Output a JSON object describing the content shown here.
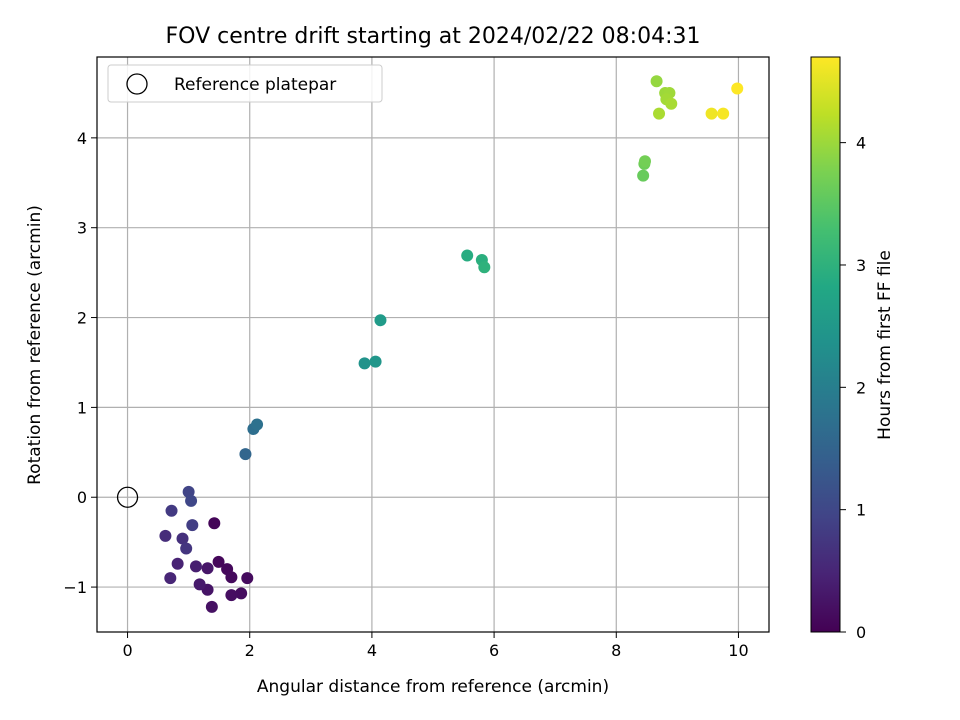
{
  "chart_data": {
    "type": "scatter",
    "title": "FOV centre drift starting at 2024/02/22 08:04:31",
    "xlabel": "Angular distance from reference (arcmin)",
    "ylabel": "Rotation from reference (arcmin)",
    "xlim": [
      -0.5,
      10.5
    ],
    "ylim": [
      -1.5,
      4.9
    ],
    "xticks": [
      0,
      2,
      4,
      6,
      8,
      10
    ],
    "yticks": [
      -1,
      0,
      1,
      2,
      3,
      4
    ],
    "grid": true,
    "legend": {
      "placement": "top-left",
      "entries": [
        "Reference platepar"
      ]
    },
    "reference_point": {
      "x": 0,
      "y": 0
    },
    "colorbar": {
      "label": "Hours from first FF file",
      "range": [
        0,
        4.7
      ],
      "ticks": [
        0,
        1,
        2,
        3,
        4
      ],
      "colormap": "viridis"
    },
    "points": [
      {
        "x": 1.42,
        "y": -0.29,
        "h": 0.05
      },
      {
        "x": 1.49,
        "y": -0.72,
        "h": 0.08
      },
      {
        "x": 1.63,
        "y": -0.8,
        "h": 0.1
      },
      {
        "x": 1.7,
        "y": -0.89,
        "h": 0.12
      },
      {
        "x": 1.96,
        "y": -0.9,
        "h": 0.14
      },
      {
        "x": 1.86,
        "y": -1.07,
        "h": 0.16
      },
      {
        "x": 1.7,
        "y": -1.09,
        "h": 0.18
      },
      {
        "x": 1.38,
        "y": -1.22,
        "h": 0.22
      },
      {
        "x": 1.31,
        "y": -1.03,
        "h": 0.26
      },
      {
        "x": 1.31,
        "y": -0.79,
        "h": 0.3
      },
      {
        "x": 1.18,
        "y": -0.97,
        "h": 0.34
      },
      {
        "x": 1.12,
        "y": -0.77,
        "h": 0.4
      },
      {
        "x": 0.82,
        "y": -0.74,
        "h": 0.45
      },
      {
        "x": 0.7,
        "y": -0.9,
        "h": 0.5
      },
      {
        "x": 0.62,
        "y": -0.43,
        "h": 0.6
      },
      {
        "x": 0.9,
        "y": -0.46,
        "h": 0.65
      },
      {
        "x": 0.96,
        "y": -0.57,
        "h": 0.72
      },
      {
        "x": 0.72,
        "y": -0.15,
        "h": 0.8
      },
      {
        "x": 1.06,
        "y": -0.31,
        "h": 0.85
      },
      {
        "x": 1.0,
        "y": 0.06,
        "h": 0.95
      },
      {
        "x": 1.04,
        "y": -0.04,
        "h": 1.0
      },
      {
        "x": 1.93,
        "y": 0.48,
        "h": 1.55
      },
      {
        "x": 2.06,
        "y": 0.76,
        "h": 1.7
      },
      {
        "x": 2.12,
        "y": 0.81,
        "h": 1.75
      },
      {
        "x": 3.88,
        "y": 1.49,
        "h": 2.4
      },
      {
        "x": 4.06,
        "y": 1.51,
        "h": 2.45
      },
      {
        "x": 4.14,
        "y": 1.97,
        "h": 2.55
      },
      {
        "x": 5.56,
        "y": 2.69,
        "h": 2.9
      },
      {
        "x": 5.8,
        "y": 2.64,
        "h": 2.95
      },
      {
        "x": 5.84,
        "y": 2.56,
        "h": 3.0
      },
      {
        "x": 8.44,
        "y": 3.58,
        "h": 3.6
      },
      {
        "x": 8.46,
        "y": 3.71,
        "h": 3.65
      },
      {
        "x": 8.47,
        "y": 3.74,
        "h": 3.7
      },
      {
        "x": 8.66,
        "y": 4.63,
        "h": 3.95
      },
      {
        "x": 8.8,
        "y": 4.5,
        "h": 4.0
      },
      {
        "x": 8.87,
        "y": 4.5,
        "h": 4.02
      },
      {
        "x": 8.82,
        "y": 4.43,
        "h": 4.05
      },
      {
        "x": 8.9,
        "y": 4.38,
        "h": 4.08
      },
      {
        "x": 8.7,
        "y": 4.27,
        "h": 4.1
      },
      {
        "x": 9.56,
        "y": 4.27,
        "h": 4.6
      },
      {
        "x": 9.75,
        "y": 4.27,
        "h": 4.65
      },
      {
        "x": 9.98,
        "y": 4.55,
        "h": 4.7
      }
    ]
  }
}
